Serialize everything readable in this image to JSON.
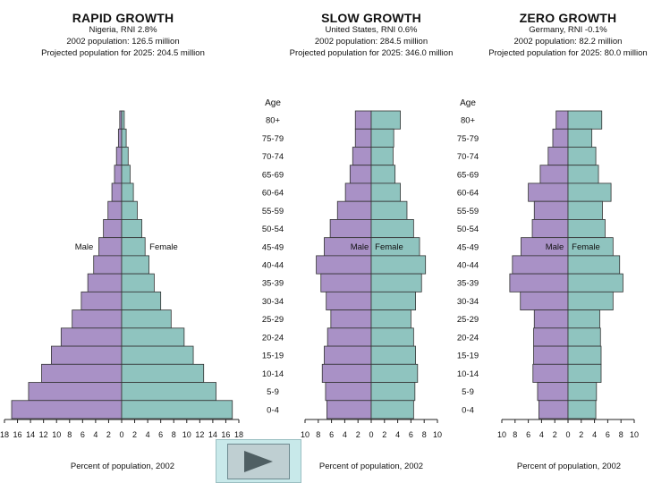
{
  "colors": {
    "male": "#a991c6",
    "female": "#8fc4bf",
    "stroke": "#333333",
    "button": "#c8e9ea"
  },
  "age_label": "Age",
  "ages": [
    "80+",
    "75-79",
    "70-74",
    "65-69",
    "60-64",
    "55-59",
    "50-54",
    "45-49",
    "40-44",
    "35-39",
    "30-34",
    "25-29",
    "20-24",
    "15-19",
    "10-14",
    "5-9",
    "0-4"
  ],
  "chart_data": [
    {
      "type": "bar",
      "title": "RAPID GROWTH",
      "subtitle_1": "Nigeria, RNI 2.8%",
      "subtitle_2": "2002 population: 126.5 million",
      "subtitle_3": "Projected population for 2025: 204.5 million",
      "xlabel": "Percent of population, 2002",
      "male_label": "Male",
      "female_label": "Female",
      "xlim": [
        0,
        18
      ],
      "tick_labels": [
        "18",
        "16",
        "14",
        "12",
        "10",
        "8",
        "6",
        "4",
        "2",
        "0",
        "2",
        "4",
        "6",
        "8",
        "10",
        "12",
        "14",
        "16",
        "18"
      ],
      "categories": [
        "80+",
        "75-79",
        "70-74",
        "65-69",
        "60-64",
        "55-59",
        "50-54",
        "45-49",
        "40-44",
        "35-39",
        "30-34",
        "25-29",
        "20-24",
        "15-19",
        "10-14",
        "5-9",
        "0-4"
      ],
      "series": [
        {
          "name": "Male",
          "values": [
            0.3,
            0.5,
            0.8,
            1.1,
            1.5,
            2.1,
            2.8,
            3.5,
            4.3,
            5.2,
            6.2,
            7.6,
            9.3,
            10.8,
            12.3,
            14.3,
            16.9
          ]
        },
        {
          "name": "Female",
          "values": [
            0.4,
            0.7,
            1.0,
            1.3,
            1.8,
            2.4,
            3.1,
            3.6,
            4.2,
            5.0,
            6.0,
            7.6,
            9.6,
            11.0,
            12.6,
            14.5,
            17.0
          ]
        }
      ]
    },
    {
      "type": "bar",
      "title": "SLOW GROWTH",
      "subtitle_1": "United States, RNI 0.6%",
      "subtitle_2": "2002 population: 284.5 million",
      "subtitle_3": "Projected population for 2025: 346.0 million",
      "xlabel": "Percent of population, 2002",
      "male_label": "Male",
      "female_label": "Female",
      "xlim": [
        0,
        10
      ],
      "tick_labels": [
        "10",
        "8",
        "6",
        "4",
        "2",
        "0",
        "2",
        "4",
        "6",
        "8",
        "10"
      ],
      "categories": [
        "80+",
        "75-79",
        "70-74",
        "65-69",
        "60-64",
        "55-59",
        "50-54",
        "45-49",
        "40-44",
        "35-39",
        "30-34",
        "25-29",
        "20-24",
        "15-19",
        "10-14",
        "5-9",
        "0-4"
      ],
      "series": [
        {
          "name": "Male",
          "values": [
            2.4,
            2.4,
            2.8,
            3.2,
            3.9,
            5.1,
            6.2,
            7.1,
            8.3,
            7.6,
            6.8,
            6.1,
            6.6,
            7.1,
            7.4,
            6.9,
            6.7
          ]
        },
        {
          "name": "Female",
          "values": [
            4.4,
            3.4,
            3.3,
            3.6,
            4.4,
            5.4,
            6.4,
            7.3,
            8.2,
            7.6,
            6.7,
            6.0,
            6.4,
            6.7,
            7.0,
            6.6,
            6.4
          ]
        }
      ]
    },
    {
      "type": "bar",
      "title": "ZERO GROWTH",
      "subtitle_1": "Germany, RNI -0.1%",
      "subtitle_2": "2002 population: 82.2 million",
      "subtitle_3": "Projected population for 2025: 80.0 million",
      "xlabel": "Percent of population, 2002",
      "male_label": "Male",
      "female_label": "Female",
      "xlim": [
        0,
        10
      ],
      "tick_labels": [
        "10",
        "8",
        "6",
        "4",
        "2",
        "0",
        "2",
        "4",
        "6",
        "8",
        "10"
      ],
      "categories": [
        "80+",
        "75-79",
        "70-74",
        "65-69",
        "60-64",
        "55-59",
        "50-54",
        "45-49",
        "40-44",
        "35-39",
        "30-34",
        "25-29",
        "20-24",
        "15-19",
        "10-14",
        "5-9",
        "0-4"
      ],
      "series": [
        {
          "name": "Male",
          "values": [
            1.8,
            2.3,
            3.0,
            4.2,
            6.0,
            5.1,
            5.4,
            7.1,
            8.4,
            8.8,
            7.2,
            5.1,
            5.2,
            5.2,
            5.3,
            4.6,
            4.4
          ]
        },
        {
          "name": "Female",
          "values": [
            5.1,
            3.6,
            4.2,
            4.6,
            6.5,
            5.2,
            5.6,
            6.8,
            7.8,
            8.3,
            6.8,
            4.8,
            4.9,
            5.0,
            5.0,
            4.3,
            4.2
          ]
        }
      ]
    }
  ]
}
